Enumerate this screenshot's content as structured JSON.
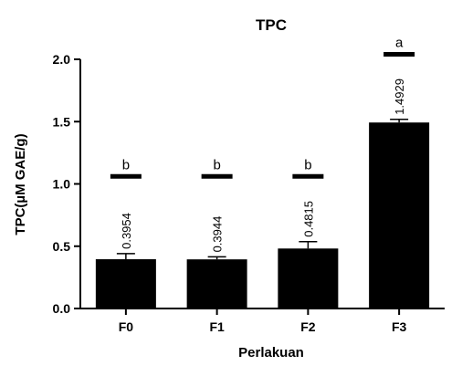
{
  "chart_data": {
    "type": "bar",
    "title": "TPC",
    "xlabel": "Perlakuan",
    "ylabel": "TPC(µM GAE/g)",
    "categories": [
      "F0",
      "F1",
      "F2",
      "F3"
    ],
    "values": [
      0.3954,
      0.3944,
      0.4815,
      1.4929
    ],
    "value_labels": [
      "0.3954",
      "0.3944",
      "0.4815",
      "1.4929"
    ],
    "error": [
      0.045,
      0.02,
      0.055,
      0.025
    ],
    "significance_letters": [
      "b",
      "b",
      "b",
      "a"
    ],
    "significance_bar_level": [
      1.06,
      1.06,
      1.06,
      2.04
    ],
    "ylim": [
      0,
      2.0
    ],
    "yticks": [
      0.0,
      0.5,
      1.0,
      1.5,
      2.0
    ],
    "ytick_labels": [
      "0.0",
      "0.5",
      "1.0",
      "1.5",
      "2.0"
    ],
    "grid": false,
    "bar_color": "#000000"
  }
}
